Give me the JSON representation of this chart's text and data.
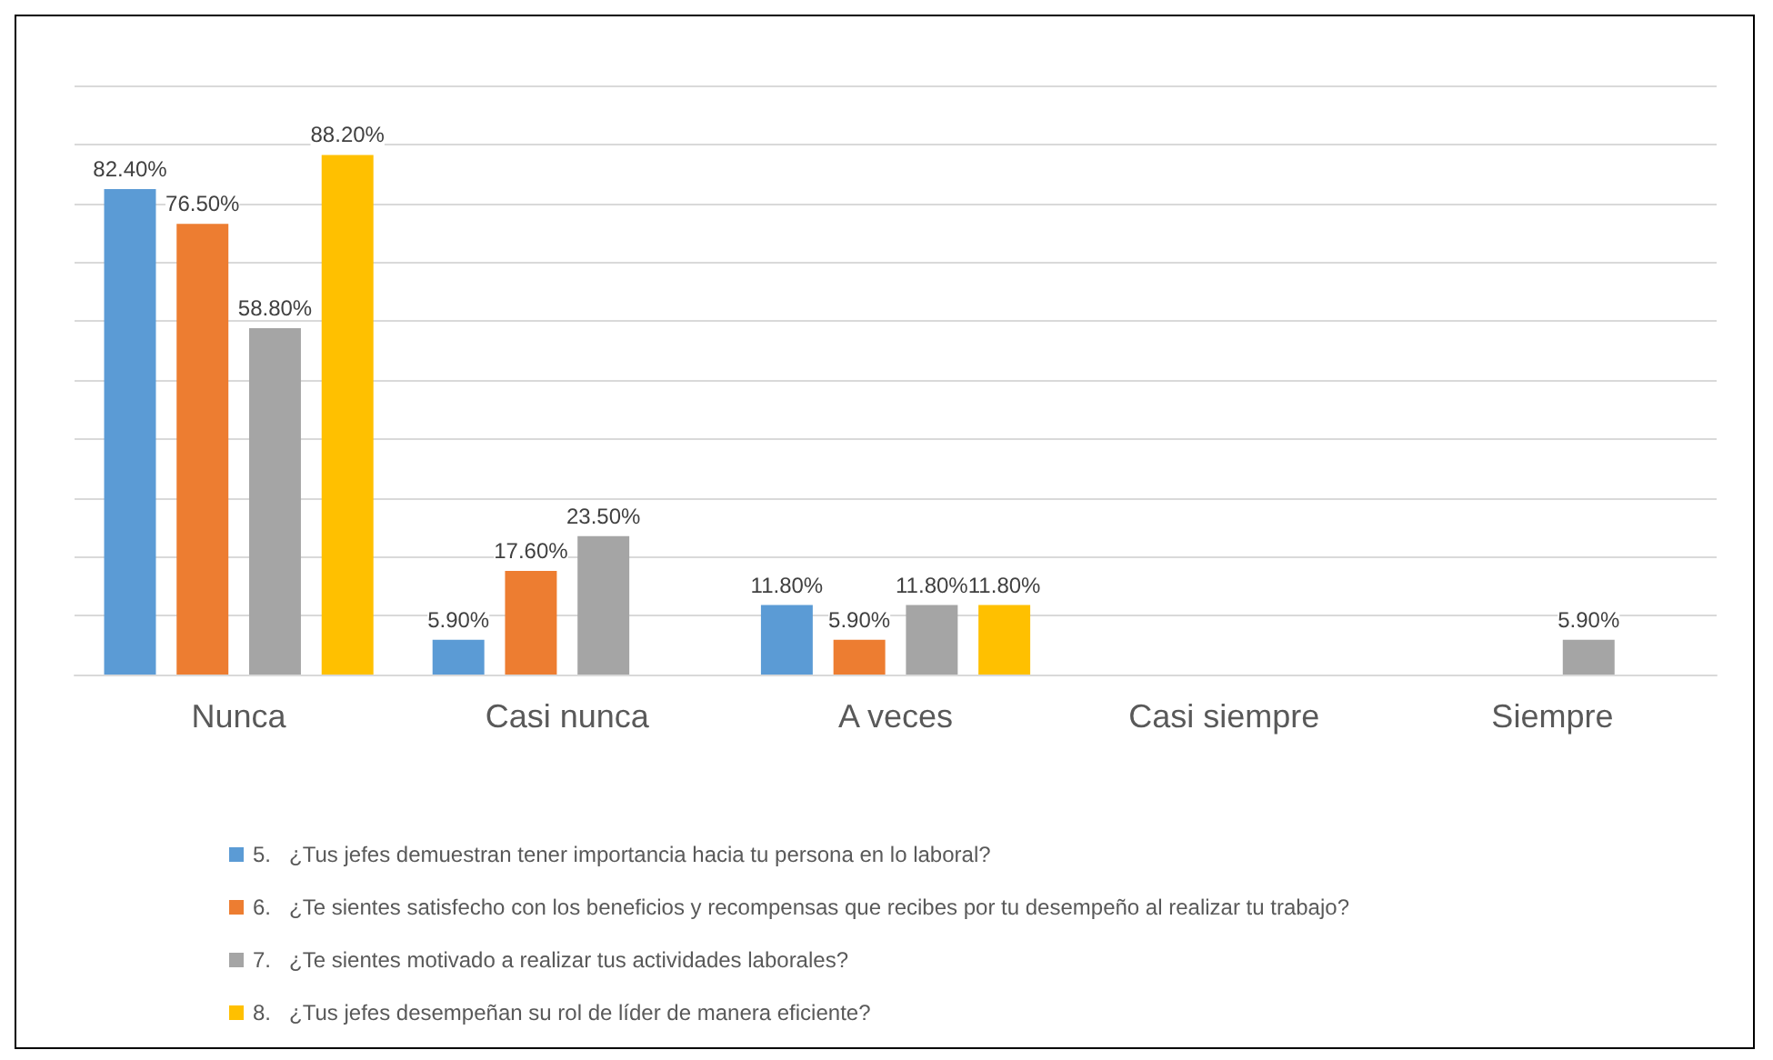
{
  "chart_data": {
    "type": "bar",
    "categories": [
      "Nunca",
      "Casi nunca",
      "A veces",
      "Casi siempre",
      "Siempre"
    ],
    "series": [
      {
        "name": "5.   ¿Tus jefes demuestran tener importancia hacia tu persona en lo laboral?",
        "color": "#5b9bd5",
        "values": [
          82.4,
          5.9,
          11.8,
          null,
          null
        ],
        "value_labels": [
          "82.40%",
          "5.90%",
          "11.80%",
          null,
          null
        ]
      },
      {
        "name": "6.   ¿Te sientes satisfecho con los beneficios y recompensas que recibes por tu desempeño al realizar tu trabajo?",
        "color": "#ed7d31",
        "values": [
          76.5,
          17.6,
          5.9,
          null,
          null
        ],
        "value_labels": [
          "76.50%",
          "17.60%",
          "5.90%",
          null,
          null
        ]
      },
      {
        "name": "7.   ¿Te sientes motivado a realizar tus actividades laborales?",
        "color": "#a5a5a5",
        "values": [
          58.8,
          23.5,
          11.8,
          null,
          5.9
        ],
        "value_labels": [
          "58.80%",
          "23.50%",
          "11.80%",
          null,
          "5.90%"
        ]
      },
      {
        "name": "8.   ¿Tus jefes desempeñan su rol de líder de manera eficiente?",
        "color": "#ffc000",
        "values": [
          88.2,
          null,
          11.8,
          null,
          null
        ],
        "value_labels": [
          "88.20%",
          null,
          "11.80%",
          null,
          null
        ]
      }
    ],
    "ylim": [
      0,
      100
    ],
    "yticks": [
      {
        "value": 0,
        "label": null
      },
      {
        "value": 10,
        "label": null
      },
      {
        "value": 20,
        "label": null
      },
      {
        "value": 30,
        "label": null
      },
      {
        "value": 40,
        "label": null
      },
      {
        "value": 50,
        "label": null
      },
      {
        "value": 60,
        "label": null
      },
      {
        "value": 70,
        "label": null
      },
      {
        "value": 80,
        "label": null
      },
      {
        "value": 90,
        "label": null
      },
      {
        "value": 100,
        "label": null
      }
    ],
    "tick_labels": "x",
    "grid": "y",
    "legend": "bottom"
  }
}
